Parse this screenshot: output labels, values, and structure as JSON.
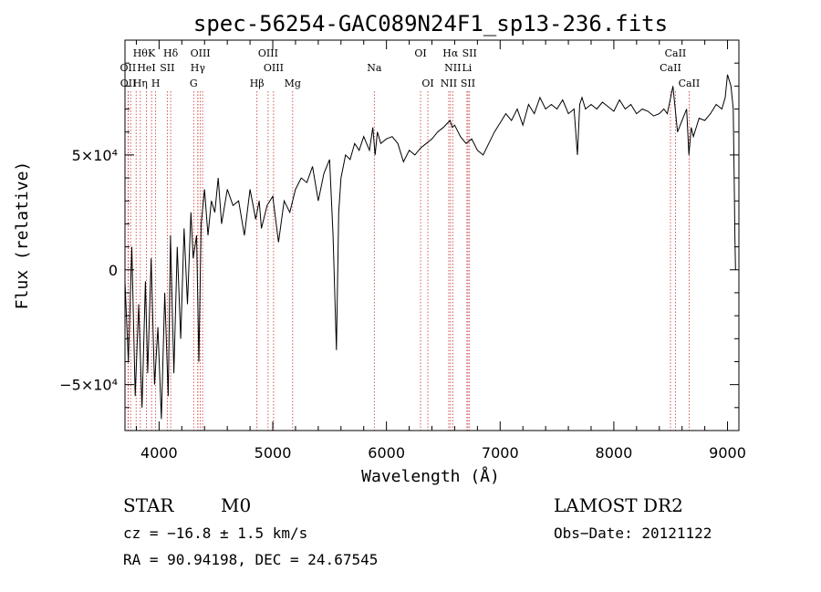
{
  "chart_data": {
    "type": "line",
    "title": "spec-56254-GAC089N24F1_sp13-236.fits",
    "xlabel": "Wavelength (Å)",
    "ylabel": "Flux (relative)",
    "xlim": [
      3700,
      9100
    ],
    "ylim": [
      -70000,
      100000
    ],
    "x_ticks": [
      4000,
      5000,
      6000,
      7000,
      8000,
      9000
    ],
    "y_ticks": [
      {
        "value": -50000,
        "label": "−5×10⁴"
      },
      {
        "value": 0,
        "label": "0"
      },
      {
        "value": 50000,
        "label": "5×10⁴"
      }
    ],
    "grid": false,
    "series": [
      {
        "x": [
          3700,
          3730,
          3760,
          3790,
          3820,
          3850,
          3880,
          3900,
          3930,
          3960,
          3990,
          4020,
          4050,
          4080,
          4100,
          4130,
          4160,
          4190,
          4220,
          4250,
          4280,
          4300,
          4330,
          4350,
          4370,
          4400,
          4430,
          4460,
          4490,
          4520,
          4550,
          4600,
          4650,
          4700,
          4750,
          4800,
          4850,
          4880,
          4900,
          4950,
          5000,
          5050,
          5100,
          5150,
          5200,
          5250,
          5300,
          5350,
          5400,
          5450,
          5500,
          5530,
          5560,
          5580,
          5600,
          5640,
          5680,
          5720,
          5760,
          5800,
          5850,
          5880,
          5900,
          5920,
          5950,
          6000,
          6050,
          6100,
          6150,
          6200,
          6250,
          6300,
          6350,
          6400,
          6450,
          6500,
          6540,
          6560,
          6580,
          6600,
          6650,
          6700,
          6750,
          6800,
          6850,
          6900,
          6950,
          7000,
          7050,
          7100,
          7150,
          7200,
          7250,
          7300,
          7350,
          7400,
          7450,
          7500,
          7550,
          7600,
          7650,
          7680,
          7700,
          7720,
          7750,
          7800,
          7850,
          7900,
          7950,
          8000,
          8050,
          8100,
          8150,
          8200,
          8250,
          8300,
          8350,
          8400,
          8440,
          8470,
          8500,
          8520,
          8540,
          8560,
          8600,
          8640,
          8660,
          8680,
          8700,
          8750,
          8800,
          8850,
          8900,
          8950,
          8980,
          9000,
          9030,
          9050,
          9060,
          9065,
          9070
        ],
        "y": [
          -5000,
          -40000,
          10000,
          -55000,
          -15000,
          -60000,
          -5000,
          -45000,
          5000,
          -50000,
          -25000,
          -65000,
          -10000,
          -55000,
          15000,
          -45000,
          10000,
          -30000,
          18000,
          -15000,
          25000,
          5000,
          15000,
          -40000,
          20000,
          35000,
          15000,
          30000,
          25000,
          40000,
          20000,
          35000,
          28000,
          30000,
          15000,
          35000,
          22000,
          30000,
          18000,
          28000,
          32000,
          12000,
          30000,
          25000,
          35000,
          40000,
          38000,
          45000,
          30000,
          42000,
          48000,
          15000,
          -35000,
          25000,
          40000,
          50000,
          48000,
          55000,
          52000,
          58000,
          52000,
          62000,
          50000,
          60000,
          55000,
          57000,
          58000,
          55000,
          47000,
          52000,
          50000,
          53000,
          55000,
          57000,
          60000,
          62000,
          64000,
          65000,
          62000,
          63000,
          58000,
          55000,
          57000,
          52000,
          50000,
          55000,
          60000,
          64000,
          68000,
          65000,
          70000,
          63000,
          72000,
          68000,
          75000,
          70000,
          72000,
          70000,
          74000,
          68000,
          70000,
          50000,
          72000,
          75000,
          70000,
          72000,
          70000,
          73000,
          71000,
          69000,
          74000,
          70000,
          72000,
          68000,
          70000,
          69000,
          67000,
          68000,
          70000,
          68000,
          75000,
          80000,
          70000,
          60000,
          65000,
          70000,
          50000,
          62000,
          58000,
          66000,
          65000,
          68000,
          72000,
          70000,
          75000,
          85000,
          80000,
          70000,
          35000,
          15000,
          0
        ]
      }
    ],
    "lines_row1": [
      {
        "wave": 3835,
        "label": "Hθ"
      },
      {
        "wave": 3934,
        "label": "K"
      },
      {
        "wave": 4102,
        "label": "Hδ"
      },
      {
        "wave": 4363,
        "label": "OIII"
      },
      {
        "wave": 4959,
        "label": "OIII"
      },
      {
        "wave": 6300,
        "label": "OI"
      },
      {
        "wave": 6563,
        "label": "Hα"
      },
      {
        "wave": 6731,
        "label": "SII"
      },
      {
        "wave": 8542,
        "label": "CaII"
      }
    ],
    "lines_row2": [
      {
        "wave": 3727,
        "label": "OII"
      },
      {
        "wave": 3889,
        "label": "HeI"
      },
      {
        "wave": 4072,
        "label": "SII"
      },
      {
        "wave": 4341,
        "label": "Hγ"
      },
      {
        "wave": 5007,
        "label": "OIII"
      },
      {
        "wave": 5893,
        "label": "Na"
      },
      {
        "wave": 6583,
        "label": "NII"
      },
      {
        "wave": 6708,
        "label": "Li"
      },
      {
        "wave": 8498,
        "label": "CaII"
      }
    ],
    "lines_row3": [
      {
        "wave": 3729,
        "label": "OII"
      },
      {
        "wave": 3835,
        "label": "Hη"
      },
      {
        "wave": 3970,
        "label": "H"
      },
      {
        "wave": 4304,
        "label": "G"
      },
      {
        "wave": 4861,
        "label": "Hβ"
      },
      {
        "wave": 5175,
        "label": "Mg"
      },
      {
        "wave": 6364,
        "label": "OI"
      },
      {
        "wave": 6548,
        "label": "NII"
      },
      {
        "wave": 6717,
        "label": "SII"
      },
      {
        "wave": 8662,
        "label": "CaII"
      }
    ],
    "extra_marker_waves": [
      3750,
      3798,
      3970,
      4102,
      4340,
      4383,
      4959,
      6300,
      6717
    ]
  },
  "footer": {
    "class_label": "STAR",
    "subclass": "M0",
    "survey": "LAMOST DR2",
    "cz": "cz = −16.8 ± 1.5 km/s",
    "obs_date": "Obs−Date: 20121122",
    "coords": "RA =  90.94198, DEC =  24.67545"
  }
}
